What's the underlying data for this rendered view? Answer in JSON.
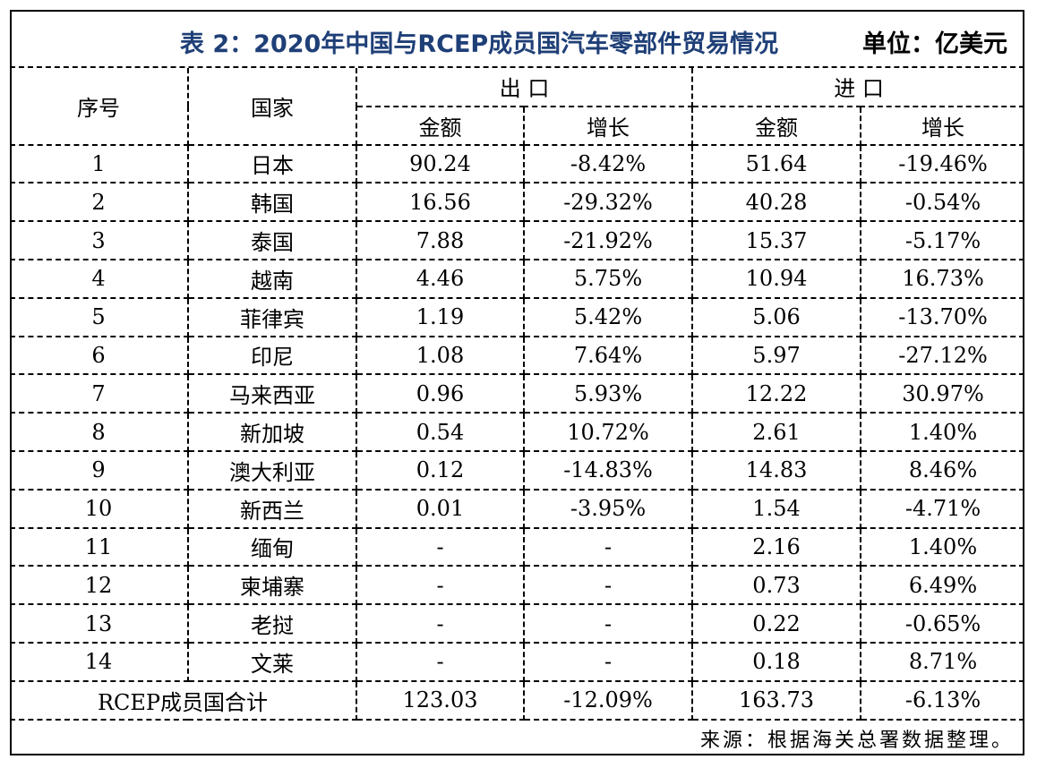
{
  "title": "表 2：2020年中国与RCEP成员国汽车零部件贸易情况",
  "unit": "单位：亿美元",
  "headers": {
    "index": "序号",
    "country": "国家",
    "export": "出 口",
    "import": "进 口",
    "amount": "金额",
    "growth": "增长"
  },
  "rows": [
    {
      "no": "1",
      "country": "日本",
      "exp_amt": "90.24",
      "exp_growth": "-8.42%",
      "imp_amt": "51.64",
      "imp_growth": "-19.46%"
    },
    {
      "no": "2",
      "country": "韩国",
      "exp_amt": "16.56",
      "exp_growth": "-29.32%",
      "imp_amt": "40.28",
      "imp_growth": "-0.54%"
    },
    {
      "no": "3",
      "country": "泰国",
      "exp_amt": "7.88",
      "exp_growth": "-21.92%",
      "imp_amt": "15.37",
      "imp_growth": "-5.17%"
    },
    {
      "no": "4",
      "country": "越南",
      "exp_amt": "4.46",
      "exp_growth": "5.75%",
      "imp_amt": "10.94",
      "imp_growth": "16.73%"
    },
    {
      "no": "5",
      "country": "菲律宾",
      "exp_amt": "1.19",
      "exp_growth": "5.42%",
      "imp_amt": "5.06",
      "imp_growth": "-13.70%"
    },
    {
      "no": "6",
      "country": "印尼",
      "exp_amt": "1.08",
      "exp_growth": "7.64%",
      "imp_amt": "5.97",
      "imp_growth": "-27.12%"
    },
    {
      "no": "7",
      "country": "马来西亚",
      "exp_amt": "0.96",
      "exp_growth": "5.93%",
      "imp_amt": "12.22",
      "imp_growth": "30.97%"
    },
    {
      "no": "8",
      "country": "新加坡",
      "exp_amt": "0.54",
      "exp_growth": "10.72%",
      "imp_amt": "2.61",
      "imp_growth": "1.40%"
    },
    {
      "no": "9",
      "country": "澳大利亚",
      "exp_amt": "0.12",
      "exp_growth": "-14.83%",
      "imp_amt": "14.83",
      "imp_growth": "8.46%"
    },
    {
      "no": "10",
      "country": "新西兰",
      "exp_amt": "0.01",
      "exp_growth": "-3.95%",
      "imp_amt": "1.54",
      "imp_growth": "-4.71%"
    },
    {
      "no": "11",
      "country": "缅甸",
      "exp_amt": "-",
      "exp_growth": "-",
      "imp_amt": "2.16",
      "imp_growth": "1.40%"
    },
    {
      "no": "12",
      "country": "柬埔寨",
      "exp_amt": "-",
      "exp_growth": "-",
      "imp_amt": "0.73",
      "imp_growth": "6.49%"
    },
    {
      "no": "13",
      "country": "老挝",
      "exp_amt": "-",
      "exp_growth": "-",
      "imp_amt": "0.22",
      "imp_growth": "-0.65%"
    },
    {
      "no": "14",
      "country": "文莱",
      "exp_amt": "-",
      "exp_growth": "-",
      "imp_amt": "0.18",
      "imp_growth": "8.71%"
    }
  ],
  "total": {
    "label": "RCEP成员国合计",
    "exp_amt": "123.03",
    "exp_growth": "-12.09%",
    "imp_amt": "163.73",
    "imp_growth": "-6.13%"
  },
  "source": "来源：根据海关总署数据整理。",
  "colors": {
    "title": "#1f3f77",
    "text": "#000000",
    "border": "#000000"
  }
}
